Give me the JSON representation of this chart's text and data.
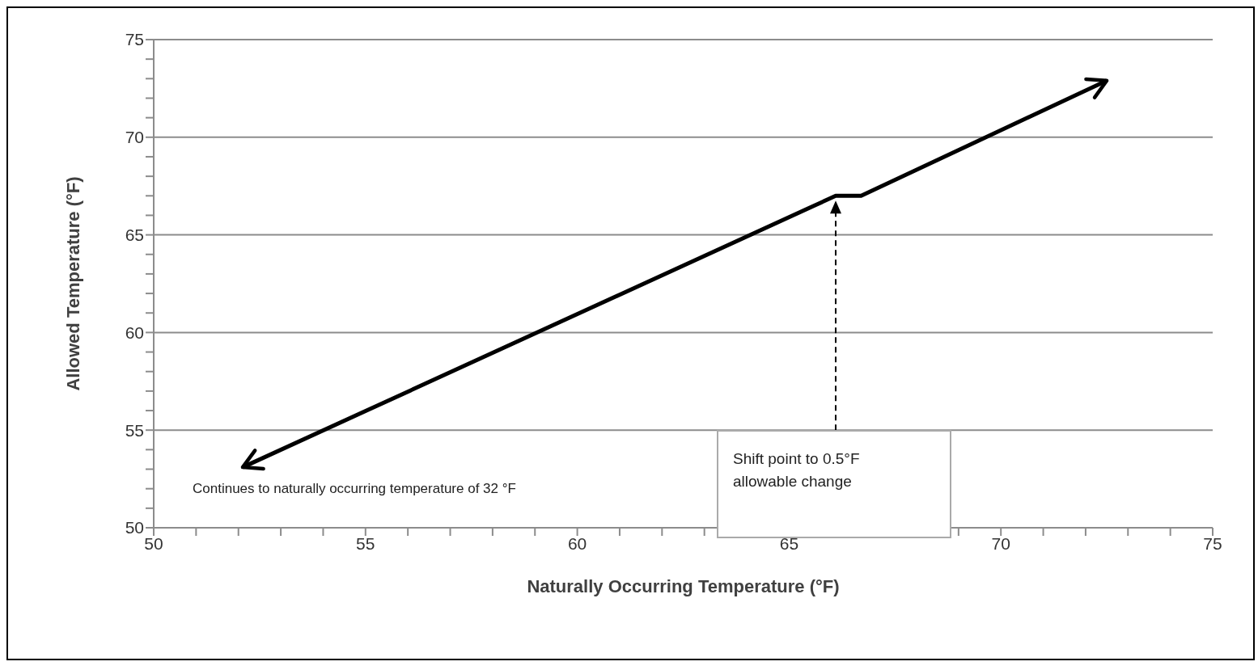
{
  "chart_data": {
    "type": "line",
    "xlabel": "Naturally Occurring Temperature (°F)",
    "ylabel": "Allowed Temperature (°F)",
    "series": [
      {
        "color": "#000000",
        "x": [
          52.1,
          66.1,
          66.7,
          72.5
        ],
        "values": [
          53.1,
          67,
          67,
          72.9
        ]
      }
    ],
    "xlim": [
      50,
      75
    ],
    "ylim": [
      50,
      75
    ],
    "xticks": [
      50,
      {
        "value": 51,
        "label": null
      },
      {
        "value": 52,
        "label": null
      },
      {
        "value": 53,
        "label": null
      },
      {
        "value": 54,
        "label": null
      },
      55,
      {
        "value": 56,
        "label": null
      },
      {
        "value": 57,
        "label": null
      },
      {
        "value": 58,
        "label": null
      },
      {
        "value": 59,
        "label": null
      },
      60,
      {
        "value": 61,
        "label": null
      },
      {
        "value": 62,
        "label": null
      },
      {
        "value": 63,
        "label": null
      },
      {
        "value": 64,
        "label": null
      },
      65,
      {
        "value": 66,
        "label": null
      },
      {
        "value": 67,
        "label": null
      },
      {
        "value": 68,
        "label": null
      },
      {
        "value": 69,
        "label": null
      },
      70,
      {
        "value": 71,
        "label": null
      },
      {
        "value": 72,
        "label": null
      },
      {
        "value": 73,
        "label": null
      },
      {
        "value": 74,
        "label": null
      },
      75
    ],
    "yticks": [
      50,
      {
        "value": 51,
        "label": null
      },
      {
        "value": 52,
        "label": null
      },
      {
        "value": 53,
        "label": null
      },
      {
        "value": 54,
        "label": null
      },
      55,
      {
        "value": 56,
        "label": null
      },
      {
        "value": 57,
        "label": null
      },
      {
        "value": 58,
        "label": null
      },
      {
        "value": 59,
        "label": null
      },
      60,
      {
        "value": 61,
        "label": null
      },
      {
        "value": 62,
        "label": null
      },
      {
        "value": 63,
        "label": null
      },
      {
        "value": 64,
        "label": null
      },
      65,
      {
        "value": 66,
        "label": null
      },
      {
        "value": 67,
        "label": null
      },
      {
        "value": 68,
        "label": null
      },
      {
        "value": 69,
        "label": null
      },
      70,
      {
        "value": 71,
        "label": null
      },
      {
        "value": 72,
        "label": null
      },
      {
        "value": 73,
        "label": null
      },
      {
        "value": 74,
        "label": null
      },
      75
    ],
    "grid": "y",
    "annotations": [
      "Shift point to 0.5°F allowable change",
      "Continues to naturally occurring temperature of 32 °F"
    ]
  }
}
